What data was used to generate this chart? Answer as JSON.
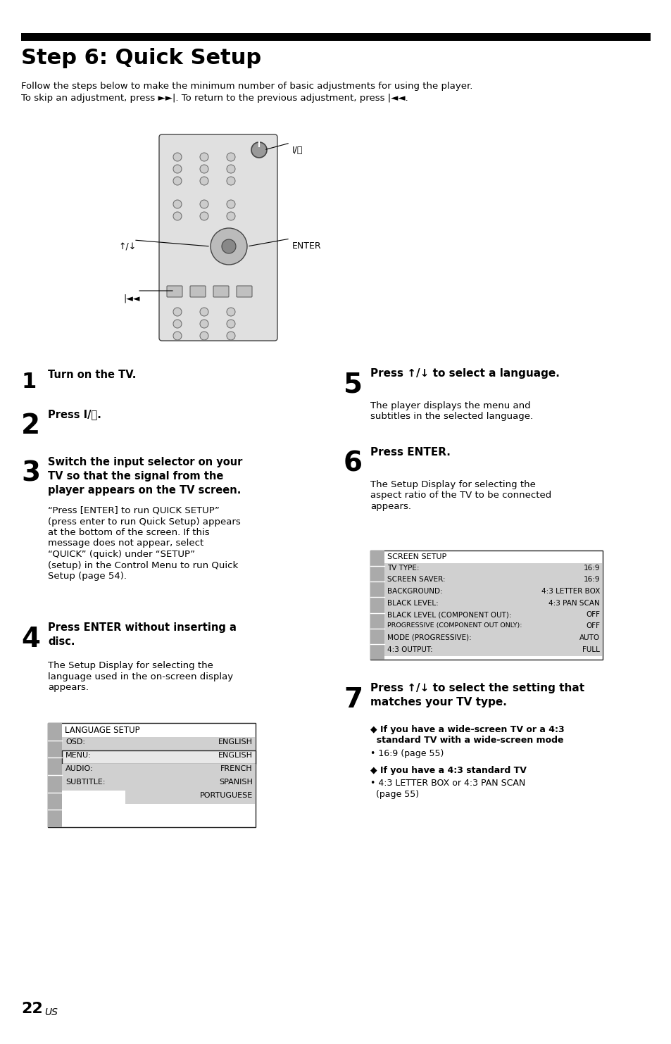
{
  "title": "Step 6: Quick Setup",
  "bg_color": "#ffffff",
  "intro_line1": "Follow the steps below to make the minimum number of basic adjustments for using the player.",
  "intro_line2": "To skip an adjustment, press ►►|. To return to the previous adjustment, press |◄◄.",
  "lang_setup": {
    "title": "LANGUAGE SETUP",
    "rows": [
      {
        "label": "OSD:",
        "value": "ENGLISH",
        "highlight": false
      },
      {
        "label": "MENU:",
        "value": "ENGLISH",
        "highlight": true
      },
      {
        "label": "AUDIO:",
        "value": "FRENCH",
        "highlight": false
      },
      {
        "label": "SUBTITLE:",
        "value": "SPANISH",
        "highlight": false
      }
    ],
    "extra": "PORTUGUESE"
  },
  "screen_setup": {
    "title": "SCREEN SETUP",
    "rows": [
      {
        "label": "TV TYPE:",
        "value": "16:9"
      },
      {
        "label": "SCREEN SAVER:",
        "value": "16:9"
      },
      {
        "label": "BACKGROUND:",
        "value": "4:3 LETTER BOX"
      },
      {
        "label": "BLACK LEVEL:",
        "value": "4:3 PAN SCAN"
      },
      {
        "label": "BLACK LEVEL (COMPONENT OUT):",
        "value": "OFF"
      },
      {
        "label": "PROGRESSIVE (COMPONENT OUT ONLY):",
        "value": "OFF"
      },
      {
        "label": "MODE (PROGRESSIVE):",
        "value": "AUTO"
      },
      {
        "label": "4:3 OUTPUT:",
        "value": "FULL"
      }
    ]
  },
  "page_num": "22",
  "page_suffix": "US"
}
